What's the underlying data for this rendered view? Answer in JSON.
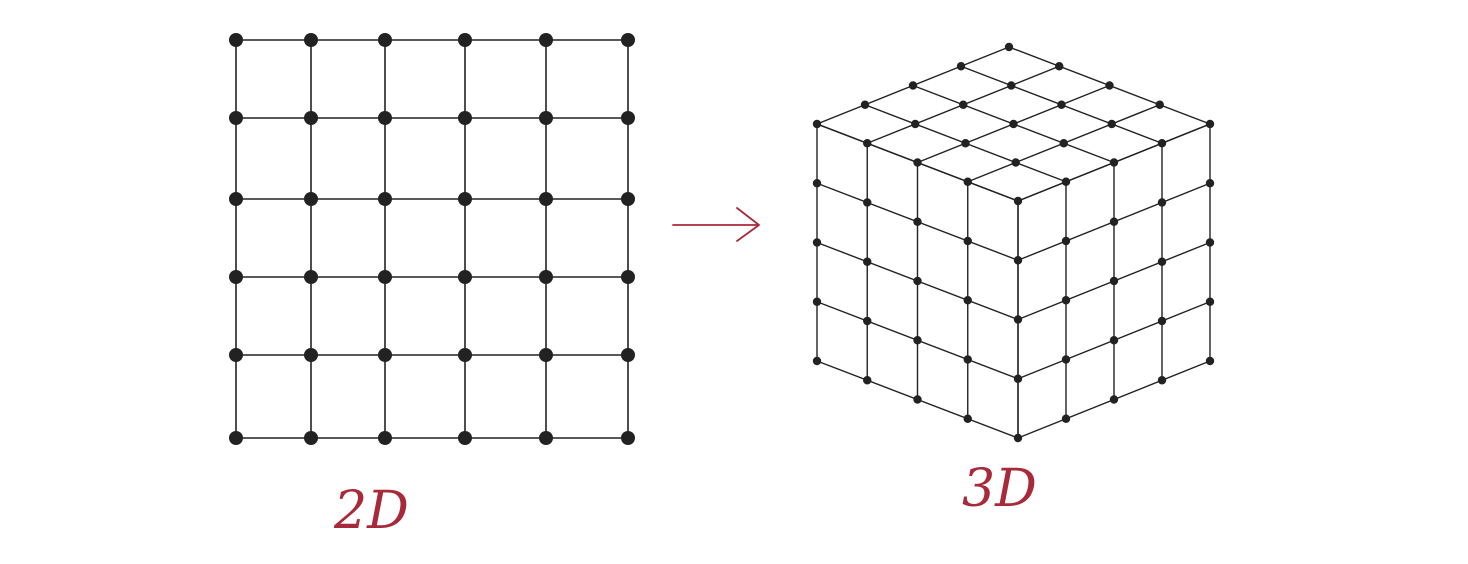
{
  "figure": {
    "description_kind": "2D grid to 3D cube lattice transformation",
    "left_grid": {
      "label": "2D",
      "rows": 6,
      "cols": 6
    },
    "right_cube": {
      "label": "3D",
      "divisions_per_edge": 4
    },
    "arrow": {
      "direction": "right"
    },
    "colors": {
      "lines": "#222222",
      "nodes": "#222222",
      "annotation": "#a82a3a",
      "background": "#ffffff"
    }
  }
}
